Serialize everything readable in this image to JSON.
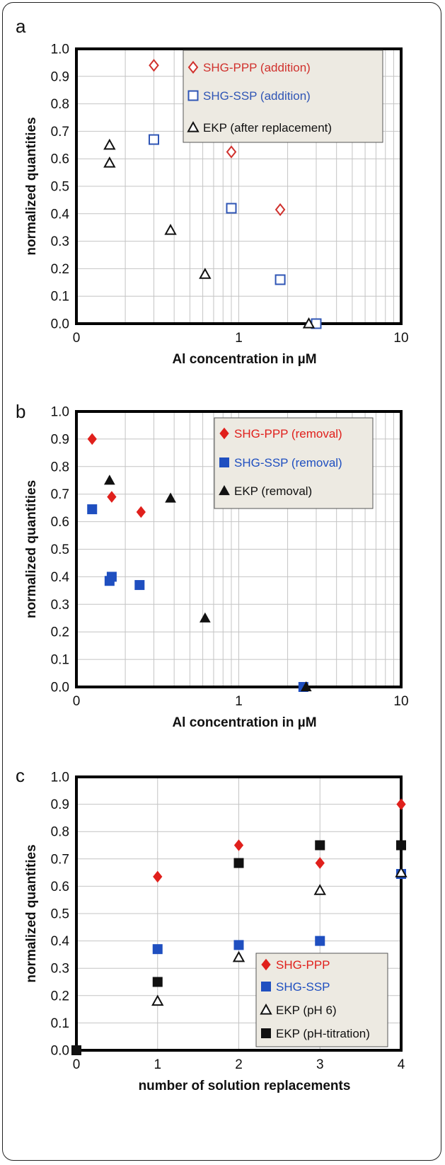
{
  "chart_data": [
    {
      "panel": "a",
      "type": "scatter",
      "xscale": "log",
      "xlim": [
        0.1,
        10
      ],
      "xticks": [
        "0",
        "1",
        "10"
      ],
      "ylim": [
        0,
        1
      ],
      "yticks": [
        "0.0",
        "0.1",
        "0.2",
        "0.3",
        "0.4",
        "0.5",
        "0.6",
        "0.7",
        "0.8",
        "0.9",
        "1.0"
      ],
      "xlabel": "Al concentration in µM",
      "ylabel": "normalized quantities",
      "grid": true,
      "legend_position": "top-right",
      "series": [
        {
          "name": "SHG-PPP (addition)",
          "color": "#d0312d",
          "marker": "diamond-open",
          "x": [
            0.3,
            0.9,
            1.8
          ],
          "y": [
            0.94,
            0.625,
            0.415
          ]
        },
        {
          "name": "SHG-SSP (addition)",
          "color": "#2f55b5",
          "marker": "square-open",
          "x": [
            0.3,
            0.9,
            1.8,
            3.0
          ],
          "y": [
            0.67,
            0.42,
            0.16,
            0.0
          ]
        },
        {
          "name": "EKP (after replacement)",
          "color": "#111111",
          "marker": "triangle-open",
          "x": [
            0.16,
            0.16,
            0.38,
            0.62,
            2.7
          ],
          "y": [
            0.65,
            0.585,
            0.34,
            0.18,
            0.0
          ]
        }
      ]
    },
    {
      "panel": "b",
      "type": "scatter",
      "xscale": "log",
      "xlim": [
        0.1,
        10
      ],
      "xticks": [
        "0",
        "1",
        "10"
      ],
      "ylim": [
        0,
        1
      ],
      "yticks": [
        "0.0",
        "0.1",
        "0.2",
        "0.3",
        "0.4",
        "0.5",
        "0.6",
        "0.7",
        "0.8",
        "0.9",
        "1.0"
      ],
      "xlabel": "Al concentration in µM",
      "ylabel": "normalized quantities",
      "grid": true,
      "legend_position": "top-right",
      "series": [
        {
          "name": "SHG-PPP (removal)",
          "color": "#e0201c",
          "marker": "diamond",
          "x": [
            0.125,
            0.165,
            0.25
          ],
          "y": [
            0.9,
            0.69,
            0.635
          ]
        },
        {
          "name": "SHG-SSP (removal)",
          "color": "#1f4fc0",
          "marker": "square",
          "x": [
            0.125,
            0.16,
            0.165,
            0.245,
            2.5
          ],
          "y": [
            0.645,
            0.385,
            0.4,
            0.37,
            0.0
          ]
        },
        {
          "name": "EKP (removal)",
          "color": "#111111",
          "marker": "triangle",
          "x": [
            0.16,
            0.38,
            0.62,
            2.6
          ],
          "y": [
            0.75,
            0.685,
            0.25,
            0.0
          ]
        }
      ]
    },
    {
      "panel": "c",
      "type": "scatter",
      "xscale": "linear",
      "xlim": [
        0,
        4
      ],
      "xticks": [
        "0",
        "1",
        "2",
        "3",
        "4"
      ],
      "ylim": [
        0,
        1
      ],
      "yticks": [
        "0.0",
        "0.1",
        "0.2",
        "0.3",
        "0.4",
        "0.5",
        "0.6",
        "0.7",
        "0.8",
        "0.9",
        "1.0"
      ],
      "xlabel": "number of solution replacements",
      "ylabel": "normalized quantities",
      "grid": true,
      "legend_position": "bottom-right",
      "series": [
        {
          "name": "SHG-PPP",
          "color": "#e0201c",
          "marker": "diamond",
          "x": [
            1,
            2,
            3,
            4
          ],
          "y": [
            0.635,
            0.75,
            0.685,
            0.9
          ]
        },
        {
          "name": "SHG-SSP",
          "color": "#1f4fc0",
          "marker": "square",
          "x": [
            1,
            2,
            3,
            4
          ],
          "y": [
            0.37,
            0.385,
            0.4,
            0.645
          ]
        },
        {
          "name": "EKP (pH 6)",
          "color": "#111111",
          "marker": "triangle-open",
          "x": [
            1,
            2,
            3,
            4
          ],
          "y": [
            0.18,
            0.34,
            0.585,
            0.65
          ]
        },
        {
          "name": "EKP (pH-titration)",
          "color": "#111111",
          "marker": "square",
          "x": [
            0,
            1,
            2,
            3,
            4
          ],
          "y": [
            0.0,
            0.25,
            0.685,
            0.75,
            0.75
          ]
        }
      ]
    }
  ]
}
